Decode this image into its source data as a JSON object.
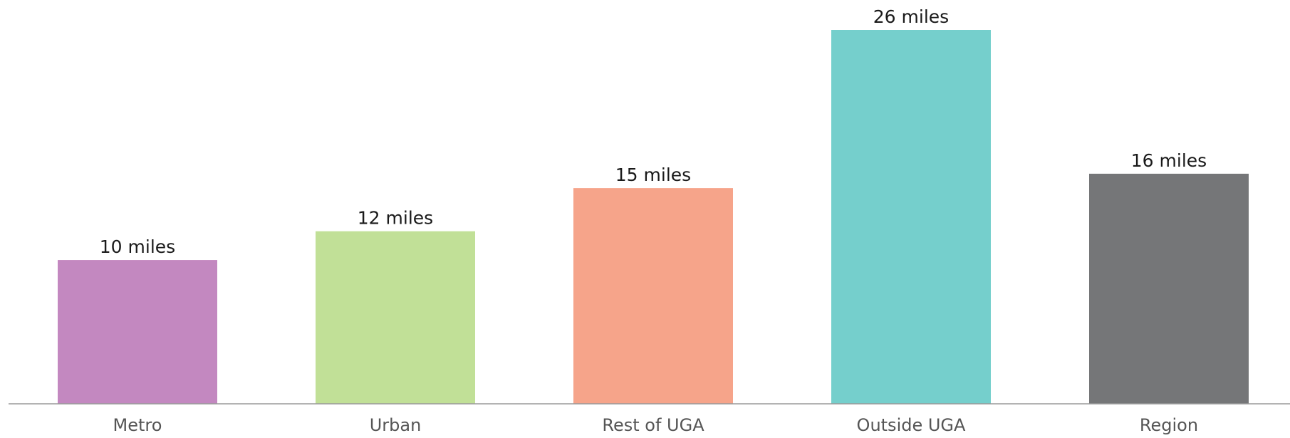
{
  "chart_data": {
    "type": "bar",
    "title": "",
    "xlabel": "",
    "ylabel": "",
    "unit": "miles",
    "categories": [
      "Metro",
      "Urban",
      "Rest of UGA",
      "Outside UGA",
      "Region"
    ],
    "values": [
      10,
      12,
      15,
      26,
      16
    ],
    "data_labels": [
      "10 miles",
      "12 miles",
      "15 miles",
      "26 miles",
      "16 miles"
    ],
    "colors": [
      "#c388c0",
      "#c1e097",
      "#f6a48a",
      "#75cfcc",
      "#757678"
    ],
    "ylim": [
      0,
      26
    ],
    "grid": false,
    "legend": "none"
  }
}
